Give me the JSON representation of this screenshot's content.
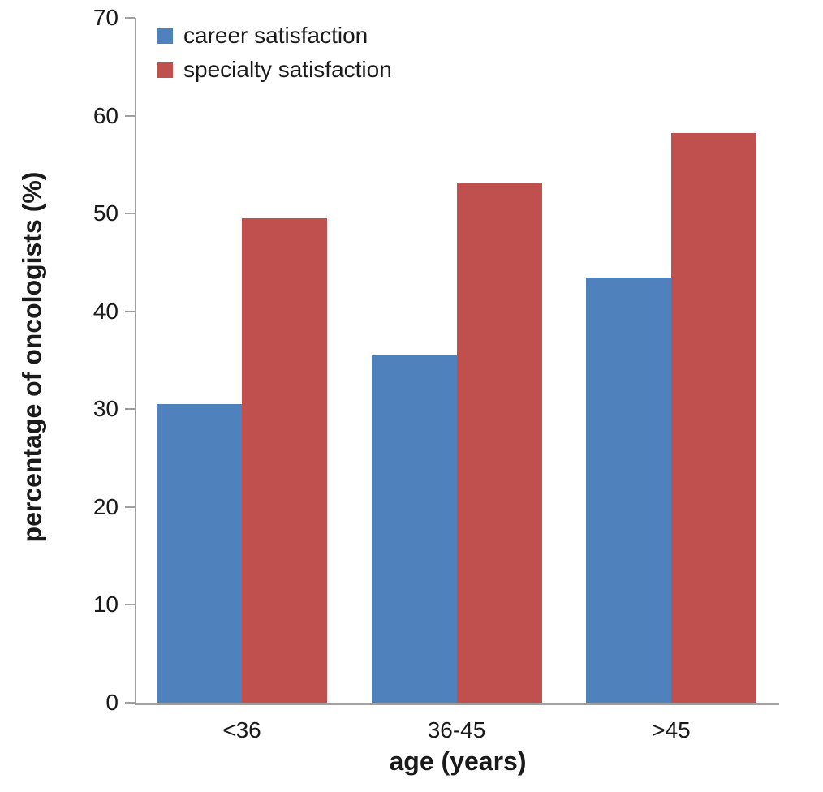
{
  "chart_data": {
    "type": "bar",
    "categories": [
      "<36",
      "36-45",
      ">45"
    ],
    "series": [
      {
        "name": "career satisfaction",
        "color": "#4f81bd",
        "values": [
          30.5,
          35.5,
          43.5
        ]
      },
      {
        "name": "specialty satisfaction",
        "color": "#c0504d",
        "values": [
          49.5,
          53.2,
          58.2
        ]
      }
    ],
    "title": "",
    "xlabel": "age (years)",
    "ylabel": "percentage of oncologists (%)",
    "ylim": [
      0,
      70
    ],
    "yticks": [
      0,
      10,
      20,
      30,
      40,
      50,
      60,
      70
    ],
    "grid": false,
    "legend_position": "top-left-inside",
    "axis_color": "#a0a0a0",
    "text_color": "#1a1a1a"
  }
}
